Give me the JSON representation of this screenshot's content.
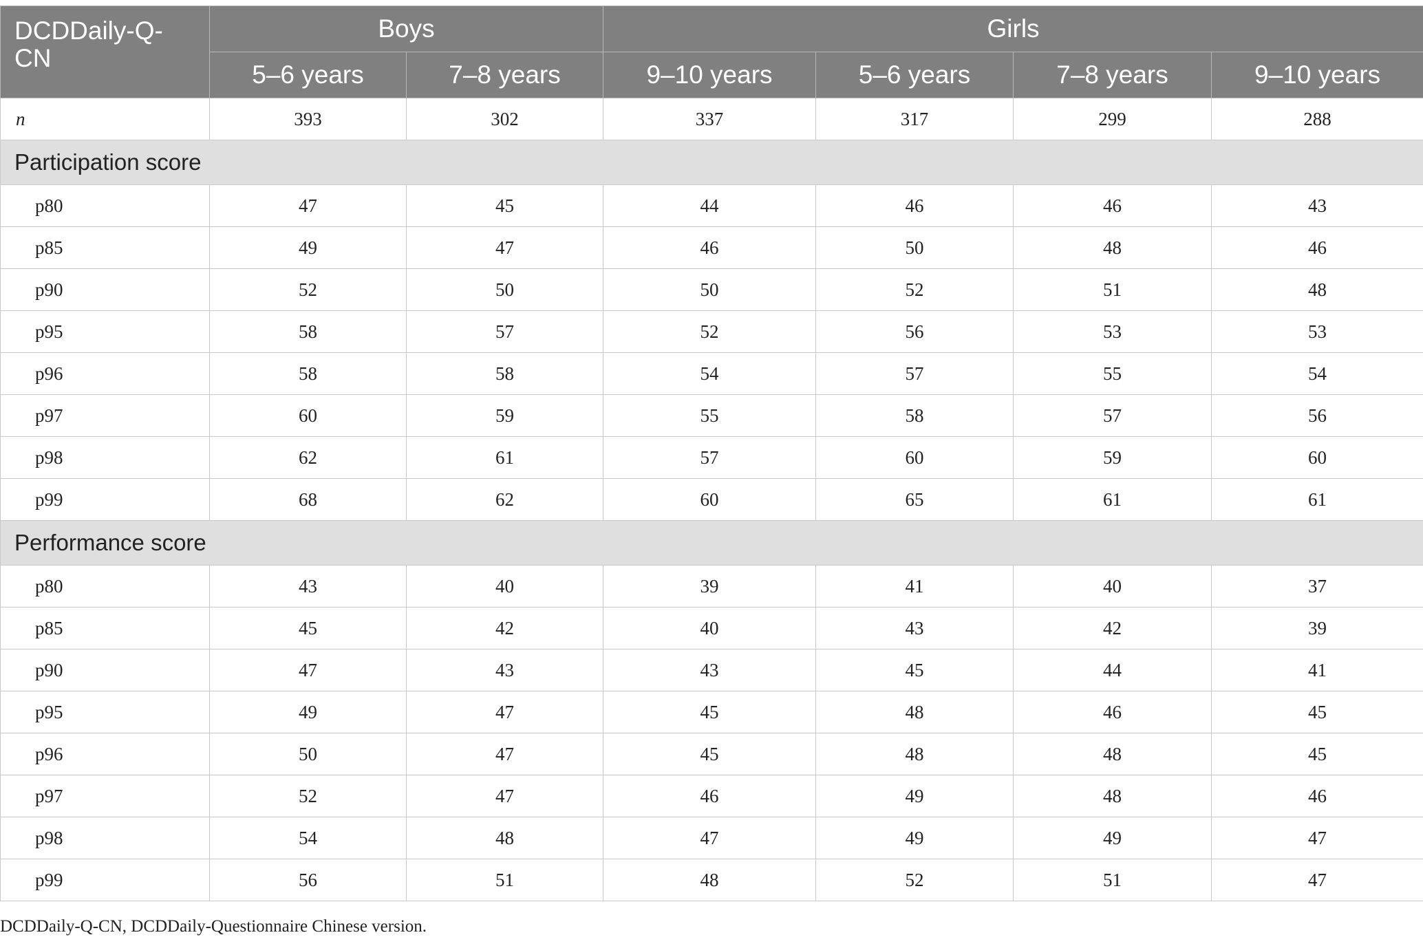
{
  "table": {
    "corner": "DCDDaily-Q-CN",
    "groups": [
      {
        "label": "Boys"
      },
      {
        "label": "Girls"
      }
    ],
    "columns": [
      "5–6 years",
      "7–8 years",
      "9–10 years",
      "5–6 years",
      "7–8 years",
      "9–10 years"
    ],
    "n_row": {
      "label": "n",
      "values": [
        "393",
        "302",
        "337",
        "317",
        "299",
        "288"
      ]
    },
    "sections": [
      {
        "title": "Participation score",
        "rows": [
          {
            "label": "p80",
            "values": [
              "47",
              "45",
              "44",
              "46",
              "46",
              "43"
            ]
          },
          {
            "label": "p85",
            "values": [
              "49",
              "47",
              "46",
              "50",
              "48",
              "46"
            ]
          },
          {
            "label": "p90",
            "values": [
              "52",
              "50",
              "50",
              "52",
              "51",
              "48"
            ]
          },
          {
            "label": "p95",
            "values": [
              "58",
              "57",
              "52",
              "56",
              "53",
              "53"
            ]
          },
          {
            "label": "p96",
            "values": [
              "58",
              "58",
              "54",
              "57",
              "55",
              "54"
            ]
          },
          {
            "label": "p97",
            "values": [
              "60",
              "59",
              "55",
              "58",
              "57",
              "56"
            ]
          },
          {
            "label": "p98",
            "values": [
              "62",
              "61",
              "57",
              "60",
              "59",
              "60"
            ]
          },
          {
            "label": "p99",
            "values": [
              "68",
              "62",
              "60",
              "65",
              "61",
              "61"
            ]
          }
        ]
      },
      {
        "title": "Performance score",
        "rows": [
          {
            "label": "p80",
            "values": [
              "43",
              "40",
              "39",
              "41",
              "40",
              "37"
            ]
          },
          {
            "label": "p85",
            "values": [
              "45",
              "42",
              "40",
              "43",
              "42",
              "39"
            ]
          },
          {
            "label": "p90",
            "values": [
              "47",
              "43",
              "43",
              "45",
              "44",
              "41"
            ]
          },
          {
            "label": "p95",
            "values": [
              "49",
              "47",
              "45",
              "48",
              "46",
              "45"
            ]
          },
          {
            "label": "p96",
            "values": [
              "50",
              "47",
              "45",
              "48",
              "48",
              "45"
            ]
          },
          {
            "label": "p97",
            "values": [
              "52",
              "47",
              "46",
              "49",
              "48",
              "46"
            ]
          },
          {
            "label": "p98",
            "values": [
              "54",
              "48",
              "47",
              "49",
              "49",
              "47"
            ]
          },
          {
            "label": "p99",
            "values": [
              "56",
              "51",
              "48",
              "52",
              "51",
              "47"
            ]
          }
        ]
      }
    ]
  },
  "footnote": "DCDDaily-Q-CN, DCDDaily-Questionnaire Chinese version.",
  "colors": {
    "header_bg": "#808080",
    "section_bg": "#e0dfdf",
    "header_text": "#ffffff"
  }
}
